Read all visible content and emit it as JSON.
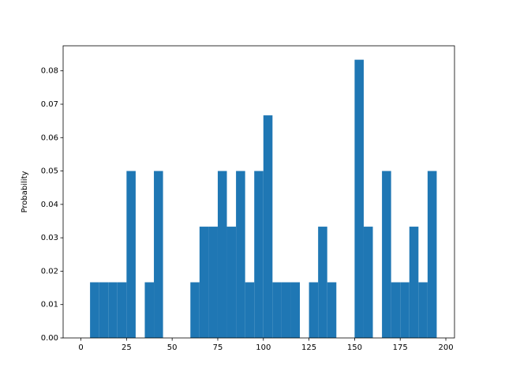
{
  "chart_data": {
    "type": "histogram",
    "ylabel": "Probability",
    "color": "#1f77b4",
    "bins": [
      0,
      5,
      10,
      15,
      20,
      25,
      30,
      35,
      40,
      45,
      50,
      55,
      60,
      65,
      70,
      75,
      80,
      85,
      90,
      95,
      100,
      105,
      110,
      115,
      120,
      125,
      130,
      135,
      140,
      145,
      150,
      155,
      160,
      165,
      170,
      175,
      180,
      185,
      190,
      195
    ],
    "values": [
      0,
      0.01667,
      0.01667,
      0.01667,
      0.01667,
      0.05,
      0,
      0.01667,
      0.05,
      0,
      0,
      0,
      0.01667,
      0.03333,
      0.03333,
      0.05,
      0.03333,
      0.05,
      0.01667,
      0.05,
      0.06667,
      0.01667,
      0.01667,
      0.01667,
      0,
      0.01667,
      0.03333,
      0.01667,
      0,
      0,
      0.08333,
      0.03333,
      0,
      0.05,
      0.01667,
      0.01667,
      0.03333,
      0.01667,
      0.05
    ],
    "xlim": [
      -9.75,
      204.75
    ],
    "xticks": [
      0,
      25,
      50,
      75,
      100,
      125,
      150,
      175,
      200
    ],
    "ylim": [
      0,
      0.0875
    ],
    "yticks": [
      {
        "value": 0,
        "label": "0.00"
      },
      {
        "value": 0.01,
        "label": "0.01"
      },
      {
        "value": 0.02,
        "label": "0.02"
      },
      {
        "value": 0.03,
        "label": "0.03"
      },
      {
        "value": 0.04,
        "label": "0.04"
      },
      {
        "value": 0.05,
        "label": "0.05"
      },
      {
        "value": 0.06,
        "label": "0.06"
      },
      {
        "value": 0.07,
        "label": "0.07"
      },
      {
        "value": 0.08,
        "label": "0.08"
      }
    ]
  }
}
